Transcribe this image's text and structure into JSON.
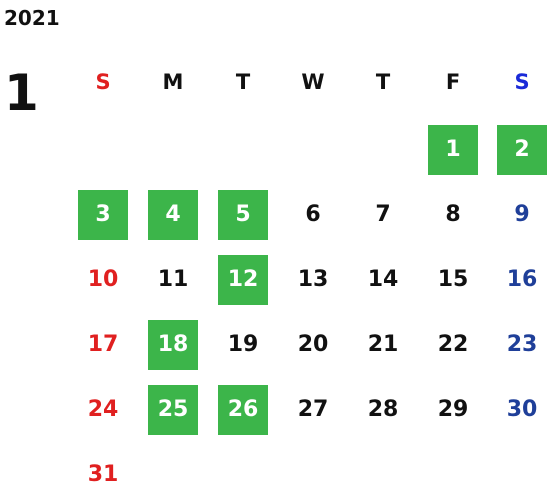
{
  "calendar": {
    "year": "2021",
    "month": "1",
    "weekdays": [
      {
        "label": "S",
        "color": "#e02020"
      },
      {
        "label": "M",
        "color": "#111111"
      },
      {
        "label": "T",
        "color": "#111111"
      },
      {
        "label": "W",
        "color": "#111111"
      },
      {
        "label": "T",
        "color": "#111111"
      },
      {
        "label": "F",
        "color": "#111111"
      },
      {
        "label": "S",
        "color": "#1a2ad8"
      }
    ],
    "first_weekday": 5,
    "days_in_month": 31,
    "highlighted_days": [
      1,
      2,
      3,
      4,
      5,
      12,
      18,
      25,
      26
    ],
    "colors": {
      "highlight_bg": "#3cb54a",
      "highlight_text": "#ffffff",
      "sunday": "#e02020",
      "saturday": "#1f3f99",
      "weekday": "#111111"
    }
  }
}
